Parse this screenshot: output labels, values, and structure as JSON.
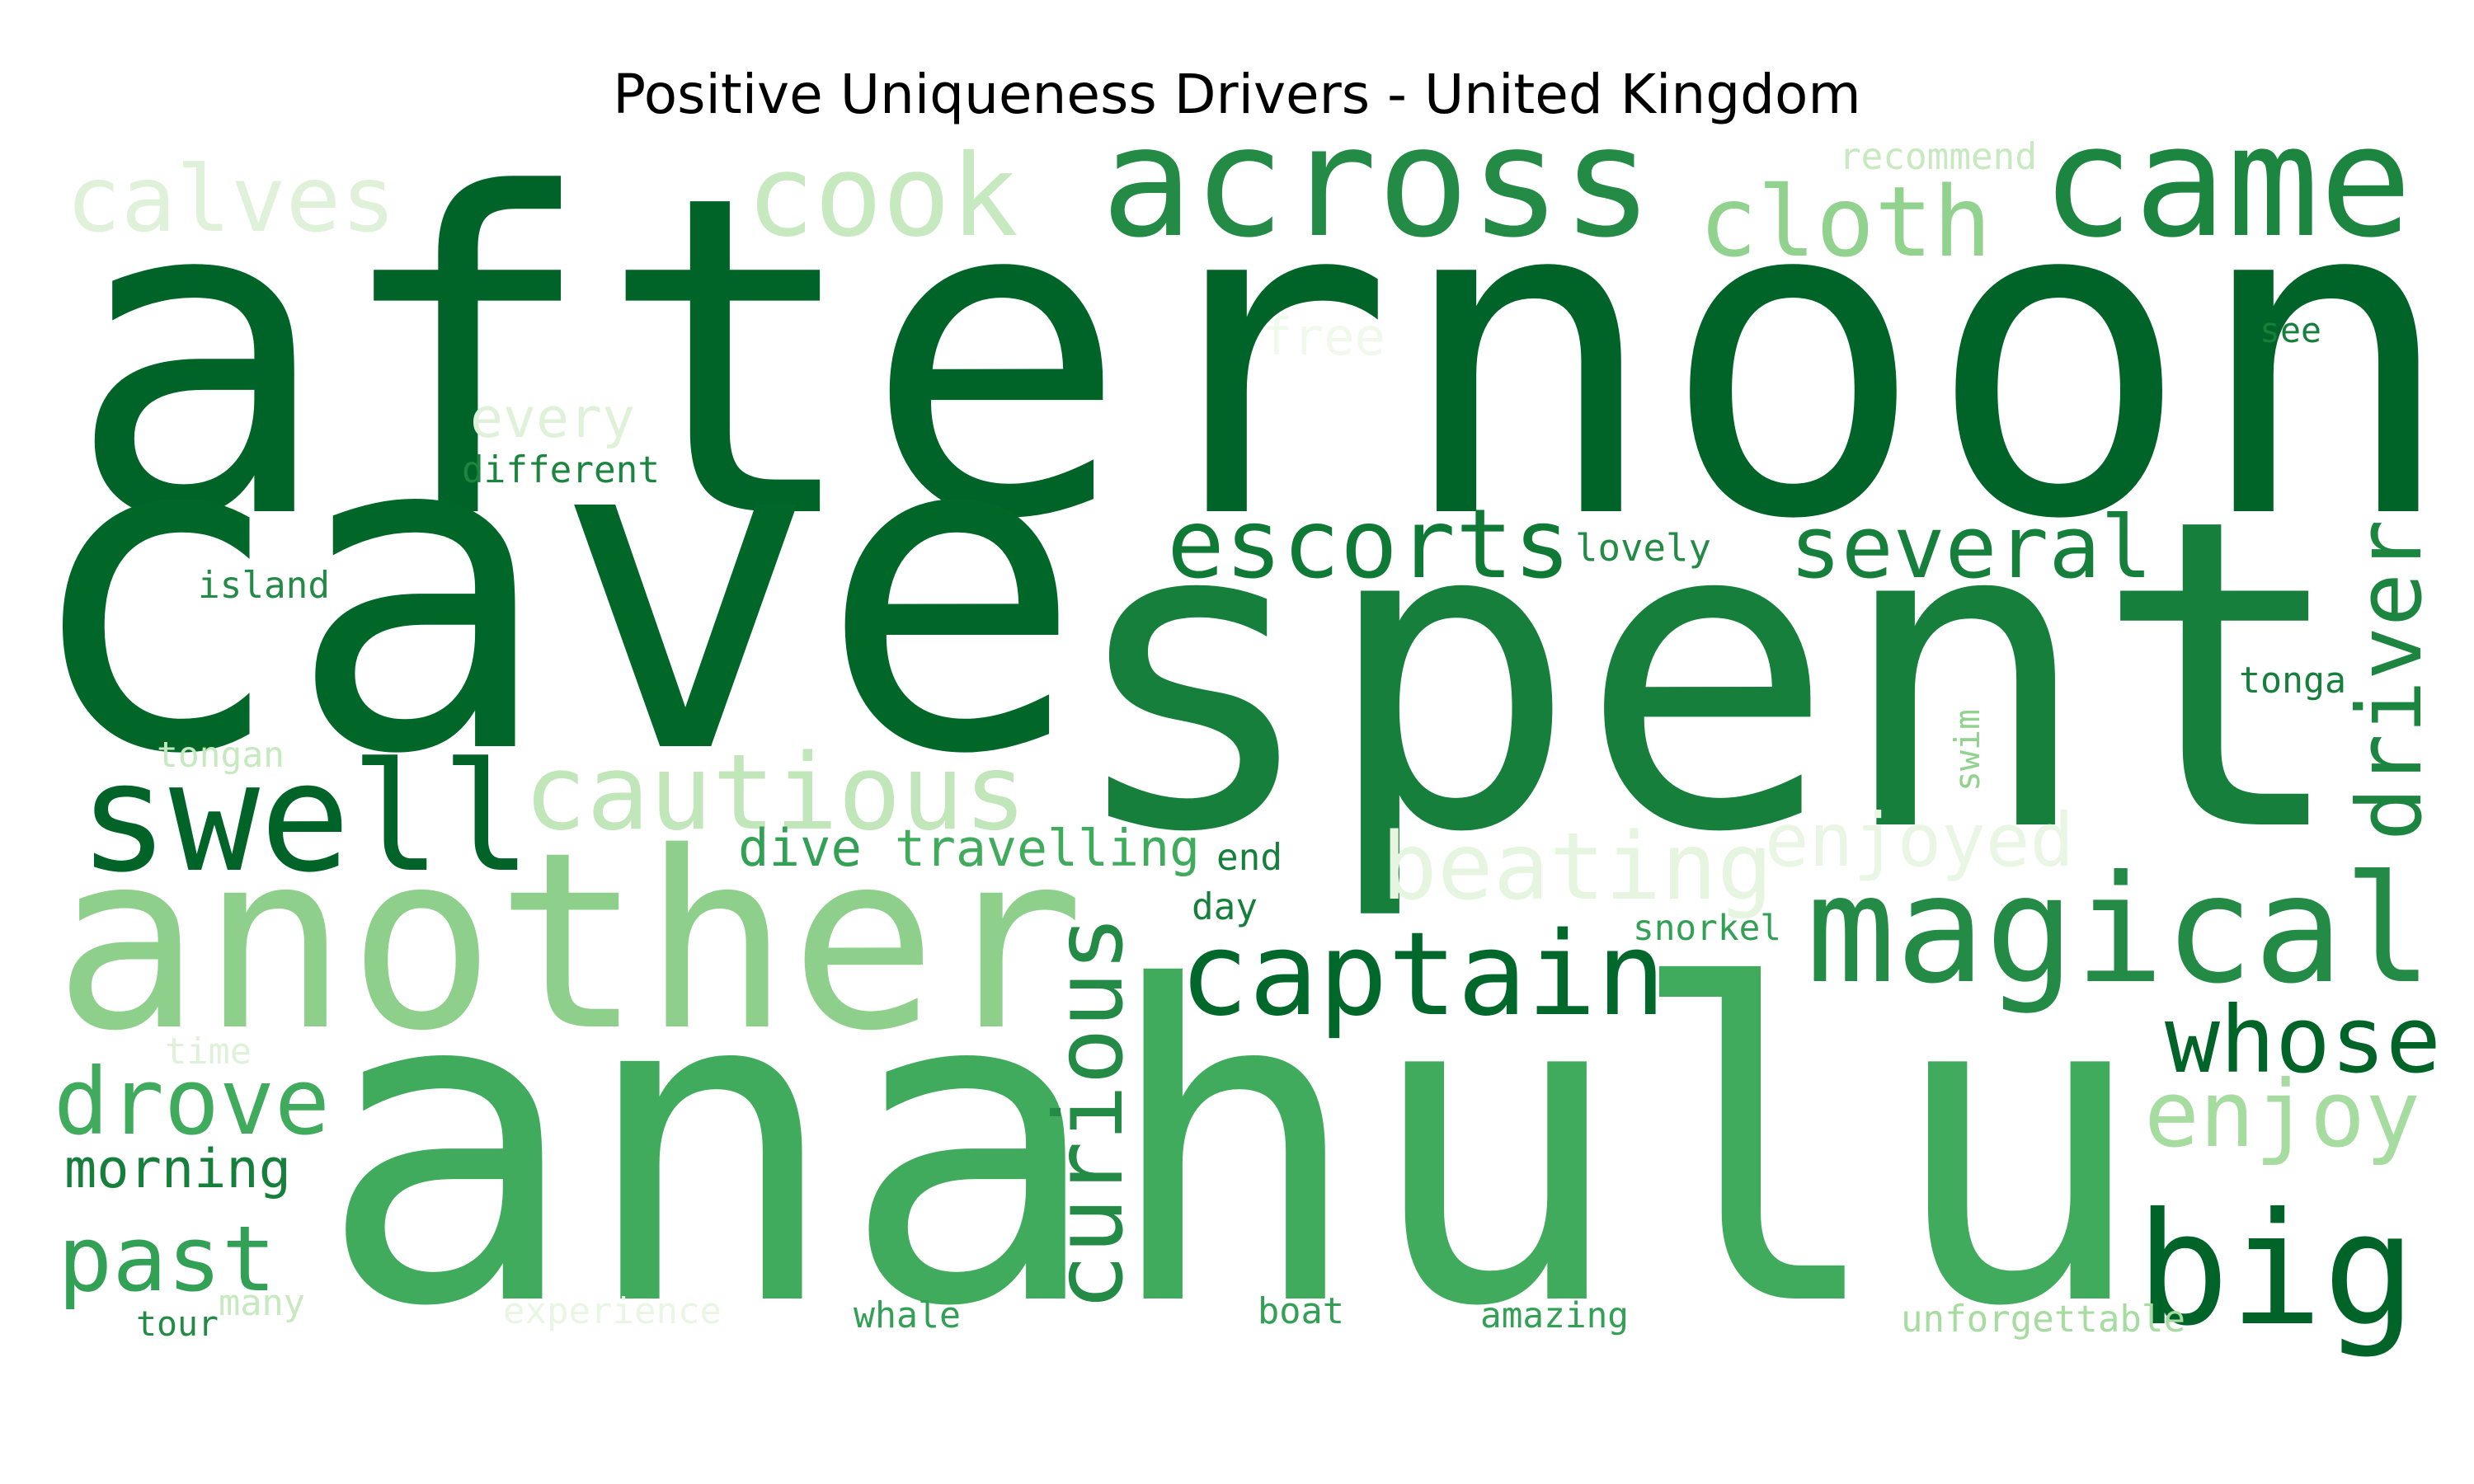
{
  "chart_data": {
    "type": "wordcloud",
    "title": "Positive Uniqueness Drivers - United Kingdom",
    "colormap": "Greens",
    "words": [
      {
        "text": "afternoon",
        "weight": 1.0,
        "color": "#006428"
      },
      {
        "text": "cave",
        "weight": 0.95,
        "color": "#006729"
      },
      {
        "text": "spent",
        "weight": 0.92,
        "color": "#157f3b"
      },
      {
        "text": "anahulu",
        "weight": 0.88,
        "color": "#41ab5d"
      },
      {
        "text": "another",
        "weight": 0.6,
        "color": "#8ed08b"
      },
      {
        "text": "across",
        "weight": 0.4,
        "color": "#238b45"
      },
      {
        "text": "came",
        "weight": 0.38,
        "color": "#1c8540"
      },
      {
        "text": "cook",
        "weight": 0.34,
        "color": "#c7e9c0"
      },
      {
        "text": "calves",
        "weight": 0.28,
        "color": "#dff2d9"
      },
      {
        "text": "cloth",
        "weight": 0.27,
        "color": "#91d28e"
      },
      {
        "text": "swell",
        "weight": 0.42,
        "color": "#006428"
      },
      {
        "text": "cautious",
        "weight": 0.3,
        "color": "#c0e6b9"
      },
      {
        "text": "escorts",
        "weight": 0.25,
        "color": "#0f7a36"
      },
      {
        "text": "several",
        "weight": 0.23,
        "color": "#157f3b"
      },
      {
        "text": "driver",
        "weight": 0.22,
        "color": "#1c8540"
      },
      {
        "text": "magical",
        "weight": 0.38,
        "color": "#238b45"
      },
      {
        "text": "beating",
        "weight": 0.3,
        "color": "#e5f5e0"
      },
      {
        "text": "enjoyed",
        "weight": 0.18,
        "color": "#e8f6e3"
      },
      {
        "text": "captain",
        "weight": 0.28,
        "color": "#00682a"
      },
      {
        "text": "curious",
        "weight": 0.26,
        "color": "#238b45"
      },
      {
        "text": "whose",
        "weight": 0.24,
        "color": "#006428"
      },
      {
        "text": "enjoy",
        "weight": 0.24,
        "color": "#a7dca1"
      },
      {
        "text": "big",
        "weight": 0.36,
        "color": "#006428"
      },
      {
        "text": "drove",
        "weight": 0.24,
        "color": "#41ab5d"
      },
      {
        "text": "past",
        "weight": 0.27,
        "color": "#32a055"
      },
      {
        "text": "morning",
        "weight": 0.16,
        "color": "#157f3b"
      },
      {
        "text": "dive",
        "weight": 0.14,
        "color": "#32a055"
      },
      {
        "text": "travelling",
        "weight": 0.15,
        "color": "#41ab5d"
      },
      {
        "text": "every",
        "weight": 0.12,
        "color": "#dff2d9"
      },
      {
        "text": "free",
        "weight": 0.12,
        "color": "#f0f9ec"
      },
      {
        "text": "different",
        "weight": 0.09,
        "color": "#1c8540"
      },
      {
        "text": "lovely",
        "weight": 0.09,
        "color": "#238b45"
      },
      {
        "text": "island",
        "weight": 0.09,
        "color": "#238b45"
      },
      {
        "text": "tonga",
        "weight": 0.09,
        "color": "#157f3b"
      },
      {
        "text": "tongan",
        "weight": 0.08,
        "color": "#c7e9c0"
      },
      {
        "text": "swim",
        "weight": 0.07,
        "color": "#91d28e"
      },
      {
        "text": "end",
        "weight": 0.08,
        "color": "#157f3b"
      },
      {
        "text": "day",
        "weight": 0.08,
        "color": "#157f3b"
      },
      {
        "text": "snorkel",
        "weight": 0.08,
        "color": "#32a055"
      },
      {
        "text": "time",
        "weight": 0.08,
        "color": "#dff2d9"
      },
      {
        "text": "see",
        "weight": 0.08,
        "color": "#157f3b"
      },
      {
        "text": "recommend",
        "weight": 0.08,
        "color": "#c7e9c0"
      },
      {
        "text": "many",
        "weight": 0.08,
        "color": "#c7e9c0"
      },
      {
        "text": "tour",
        "weight": 0.08,
        "color": "#238b45"
      },
      {
        "text": "experience",
        "weight": 0.08,
        "color": "#e8f6e3"
      },
      {
        "text": "whale",
        "weight": 0.08,
        "color": "#32a055"
      },
      {
        "text": "boat",
        "weight": 0.08,
        "color": "#32a055"
      },
      {
        "text": "amazing",
        "weight": 0.08,
        "color": "#32a055"
      },
      {
        "text": "unforgettable",
        "weight": 0.08,
        "color": "#a7dca1"
      }
    ]
  }
}
